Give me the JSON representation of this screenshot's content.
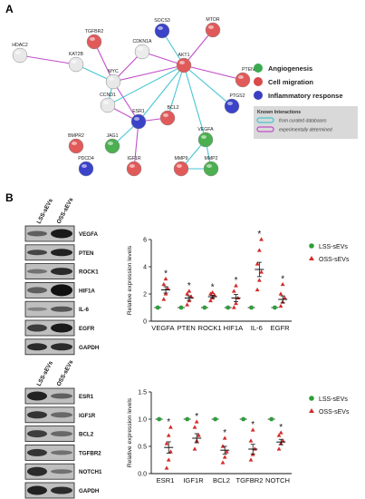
{
  "panel_a": {
    "letter": "A",
    "nodes": [
      {
        "id": "HDAC2",
        "color": "#e8e8e8"
      },
      {
        "id": "TGFBR2",
        "color": "#e15a5a"
      },
      {
        "id": "CDKN1A",
        "color": "#ececec"
      },
      {
        "id": "SOCS3",
        "color": "#3b43c9"
      },
      {
        "id": "MTOR",
        "color": "#e15a5a"
      },
      {
        "id": "KAT2B",
        "color": "#e8e8e8"
      },
      {
        "id": "MYC",
        "color": "#e8e8e8"
      },
      {
        "id": "AKT1",
        "color": "#e15a5a"
      },
      {
        "id": "PTEN",
        "color": "#e15a5a"
      },
      {
        "id": "CCND1",
        "color": "#e8e8e8"
      },
      {
        "id": "PTGS2",
        "color": "#3b43c9"
      },
      {
        "id": "BCL2",
        "color": "#e15a5a"
      },
      {
        "id": "ESR1",
        "color": "#3b43c9"
      },
      {
        "id": "BMPR2",
        "color": "#e15a5a"
      },
      {
        "id": "JAG1",
        "color": "#4caf50"
      },
      {
        "id": "VEGFA",
        "color": "#4caf50"
      },
      {
        "id": "IGF1R",
        "color": "#e15a5a"
      },
      {
        "id": "PDCD4",
        "color": "#3b43c9"
      },
      {
        "id": "MMP9",
        "color": "#e15a5a"
      },
      {
        "id": "MMP2",
        "color": "#4caf50"
      }
    ],
    "legend": [
      {
        "label": "Angiogenesis",
        "color": "#3caa50"
      },
      {
        "label": "Cell migration",
        "color": "#d94a4a"
      },
      {
        "label": "Inflammatory response",
        "color": "#3b3fc2"
      }
    ],
    "known_interactions": {
      "title": "Known Interactions",
      "items": [
        {
          "label": "from curated databases",
          "color": "#46c6d3"
        },
        {
          "label": "experimentally determined",
          "color": "#c14fc9"
        }
      ]
    }
  },
  "panel_b": {
    "letter": "B",
    "blot1": {
      "lanes": [
        "LSS-sEVs",
        "OSS-sEVs"
      ],
      "bands": [
        "VEGFA",
        "PTEN",
        "ROCK1",
        "HIF1A",
        "IL-6",
        "EGFR",
        "GAPDH"
      ]
    },
    "blot2": {
      "lanes": [
        "LSS-sEVs",
        "OSS-sEVs"
      ],
      "bands": [
        "ESR1",
        "IGF1R",
        "BCL2",
        "TGFBR2",
        "NOTCH1",
        "GAPDH"
      ]
    }
  },
  "chart_data": [
    {
      "type": "scatter",
      "ylabel": "Relative expression levels",
      "ylim": [
        0,
        6
      ],
      "yticks": [
        "0",
        "2",
        "4",
        "6"
      ],
      "categories": [
        "VEGFA",
        "PTEN",
        "ROCK1",
        "HIF1A",
        "IL-6",
        "EGFR"
      ],
      "significance": [
        "*",
        "*",
        "*",
        "*",
        "*",
        "*"
      ],
      "legend_position": "top-right",
      "series": [
        {
          "name": "LSS-sEVs",
          "color": "#2e9e3a",
          "marker": "circle",
          "means": [
            1,
            1,
            1,
            1,
            1,
            1
          ]
        },
        {
          "name": "OSS-sEVs",
          "color": "#d42a2a",
          "marker": "triangle",
          "means": [
            2.3,
            1.7,
            1.8,
            1.7,
            3.8,
            1.6
          ],
          "points": [
            [
              1.6,
              2.0,
              2.4,
              2.7,
              3.1
            ],
            [
              1.2,
              1.5,
              1.8,
              2.0,
              2.2
            ],
            [
              1.5,
              1.7,
              1.9,
              2.0,
              2.1
            ],
            [
              1.0,
              1.3,
              1.7,
              2.2,
              2.6
            ],
            [
              2.3,
              3.0,
              3.6,
              4.2,
              5.2,
              6.0
            ],
            [
              1.1,
              1.4,
              1.7,
              2.0,
              2.7
            ]
          ]
        }
      ]
    },
    {
      "type": "scatter",
      "ylabel": "Relative expression levels",
      "ylim": [
        0,
        1.5
      ],
      "yticks": [
        "0.0",
        "0.5",
        "1.0",
        "1.5"
      ],
      "categories": [
        "ESR1",
        "IGF1R",
        "BCL2",
        "TGFBR2",
        "NOTCH"
      ],
      "significance": [
        "*",
        "*",
        "*",
        "*",
        "*"
      ],
      "legend_position": "top-right",
      "series": [
        {
          "name": "LSS-sEVs",
          "color": "#2e9e3a",
          "marker": "circle",
          "means": [
            1,
            1,
            1,
            1,
            1
          ]
        },
        {
          "name": "OSS-sEVs",
          "color": "#d42a2a",
          "marker": "triangle",
          "means": [
            0.48,
            0.65,
            0.43,
            0.45,
            0.58
          ],
          "points": [
            [
              0.1,
              0.25,
              0.4,
              0.55,
              0.7,
              0.85
            ],
            [
              0.45,
              0.6,
              0.7,
              0.85,
              0.95
            ],
            [
              0.2,
              0.3,
              0.4,
              0.5,
              0.65
            ],
            [
              0.25,
              0.35,
              0.45,
              0.6,
              0.8
            ],
            [
              0.45,
              0.55,
              0.6,
              0.7,
              0.75
            ]
          ]
        }
      ]
    }
  ]
}
